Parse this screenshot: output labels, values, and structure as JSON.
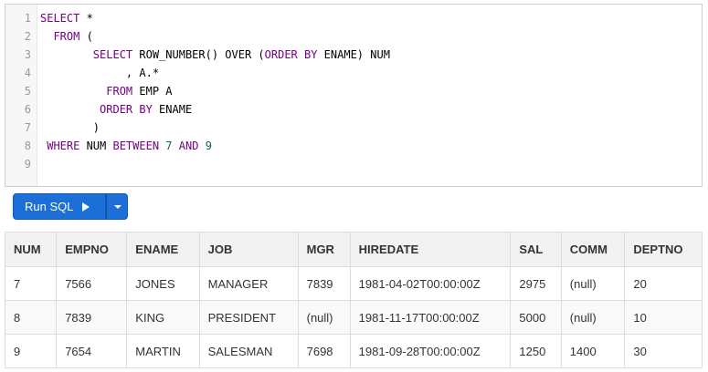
{
  "editor": {
    "line_numbers": [
      "1",
      "2",
      "3",
      "4",
      "5",
      "6",
      "7",
      "8",
      "9"
    ],
    "lines": [
      [
        {
          "t": "SELECT",
          "c": "kw"
        },
        {
          "t": " *",
          "c": "plain"
        }
      ],
      [
        {
          "t": "  ",
          "c": "plain"
        },
        {
          "t": "FROM",
          "c": "kw"
        },
        {
          "t": " (",
          "c": "plain"
        }
      ],
      [
        {
          "t": "        ",
          "c": "plain"
        },
        {
          "t": "SELECT",
          "c": "kw"
        },
        {
          "t": " ROW_NUMBER() OVER (",
          "c": "plain"
        },
        {
          "t": "ORDER BY",
          "c": "kw"
        },
        {
          "t": " ENAME) NUM",
          "c": "plain"
        }
      ],
      [
        {
          "t": "             , A.*",
          "c": "plain"
        }
      ],
      [
        {
          "t": "          ",
          "c": "plain"
        },
        {
          "t": "FROM",
          "c": "kw"
        },
        {
          "t": " EMP A",
          "c": "plain"
        }
      ],
      [
        {
          "t": "         ",
          "c": "plain"
        },
        {
          "t": "ORDER BY",
          "c": "kw"
        },
        {
          "t": " ENAME",
          "c": "plain"
        }
      ],
      [
        {
          "t": "        )",
          "c": "plain"
        }
      ],
      [
        {
          "t": " ",
          "c": "plain"
        },
        {
          "t": "WHERE",
          "c": "kw"
        },
        {
          "t": " NUM ",
          "c": "plain"
        },
        {
          "t": "BETWEEN",
          "c": "kw"
        },
        {
          "t": " ",
          "c": "plain"
        },
        {
          "t": "7",
          "c": "num"
        },
        {
          "t": " ",
          "c": "plain"
        },
        {
          "t": "AND",
          "c": "kw"
        },
        {
          "t": " ",
          "c": "plain"
        },
        {
          "t": "9",
          "c": "num"
        }
      ],
      []
    ]
  },
  "toolbar": {
    "run_label": "Run SQL",
    "colors": {
      "button_bg": "#1b6fd6",
      "keyword": "#770088",
      "number": "#116644"
    }
  },
  "results": {
    "columns": [
      "NUM",
      "EMPNO",
      "ENAME",
      "JOB",
      "MGR",
      "HIREDATE",
      "SAL",
      "COMM",
      "DEPTNO"
    ],
    "rows": [
      [
        "7",
        "7566",
        "JONES",
        "MANAGER",
        "7839",
        "1981-04-02T00:00:00Z",
        "2975",
        "(null)",
        "20"
      ],
      [
        "8",
        "7839",
        "KING",
        "PRESIDENT",
        "(null)",
        "1981-11-17T00:00:00Z",
        "5000",
        "(null)",
        "10"
      ],
      [
        "9",
        "7654",
        "MARTIN",
        "SALESMAN",
        "7698",
        "1981-09-28T00:00:00Z",
        "1250",
        "1400",
        "30"
      ]
    ]
  }
}
